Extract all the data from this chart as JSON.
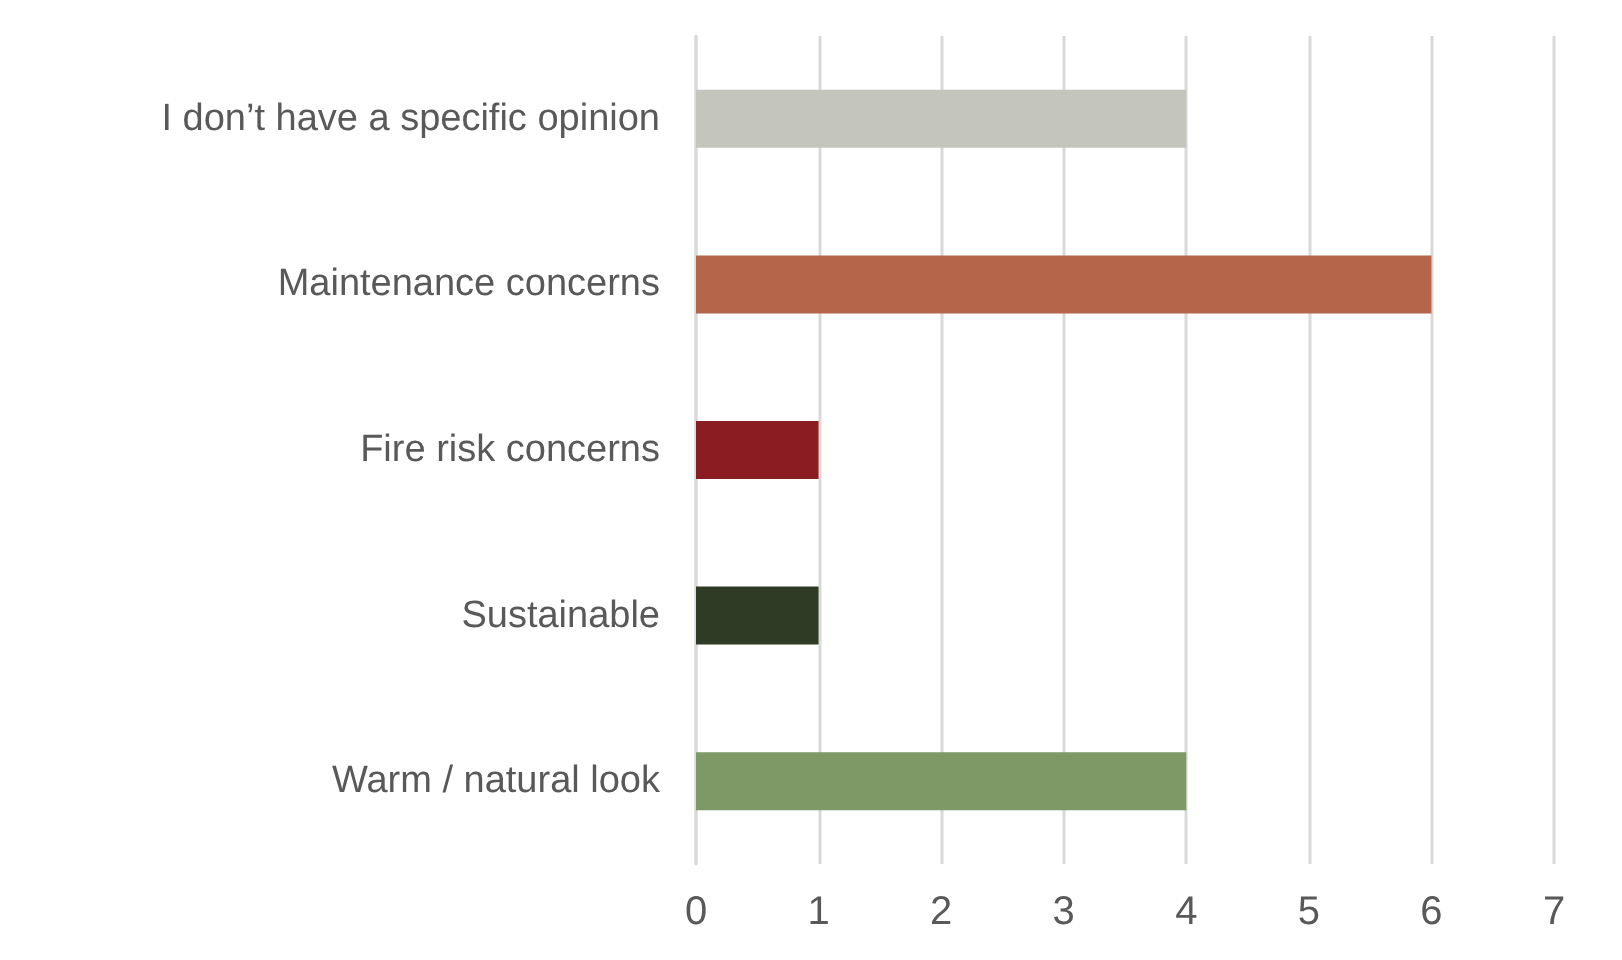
{
  "chart_data": {
    "type": "bar",
    "orientation": "horizontal",
    "categories": [
      "I don’t have a specific opinion",
      "Maintenance concerns",
      "Fire risk concerns",
      "Sustainable",
      "Warm / natural look"
    ],
    "values": [
      4,
      6,
      1,
      1,
      4
    ],
    "colors": [
      "#c4c6bc",
      "#b5664a",
      "#8b1c22",
      "#2f3b24",
      "#7e9866"
    ],
    "xlim": [
      0,
      7
    ],
    "xticks": [
      0,
      1,
      2,
      3,
      4,
      5,
      6,
      7
    ],
    "grid": "x"
  }
}
